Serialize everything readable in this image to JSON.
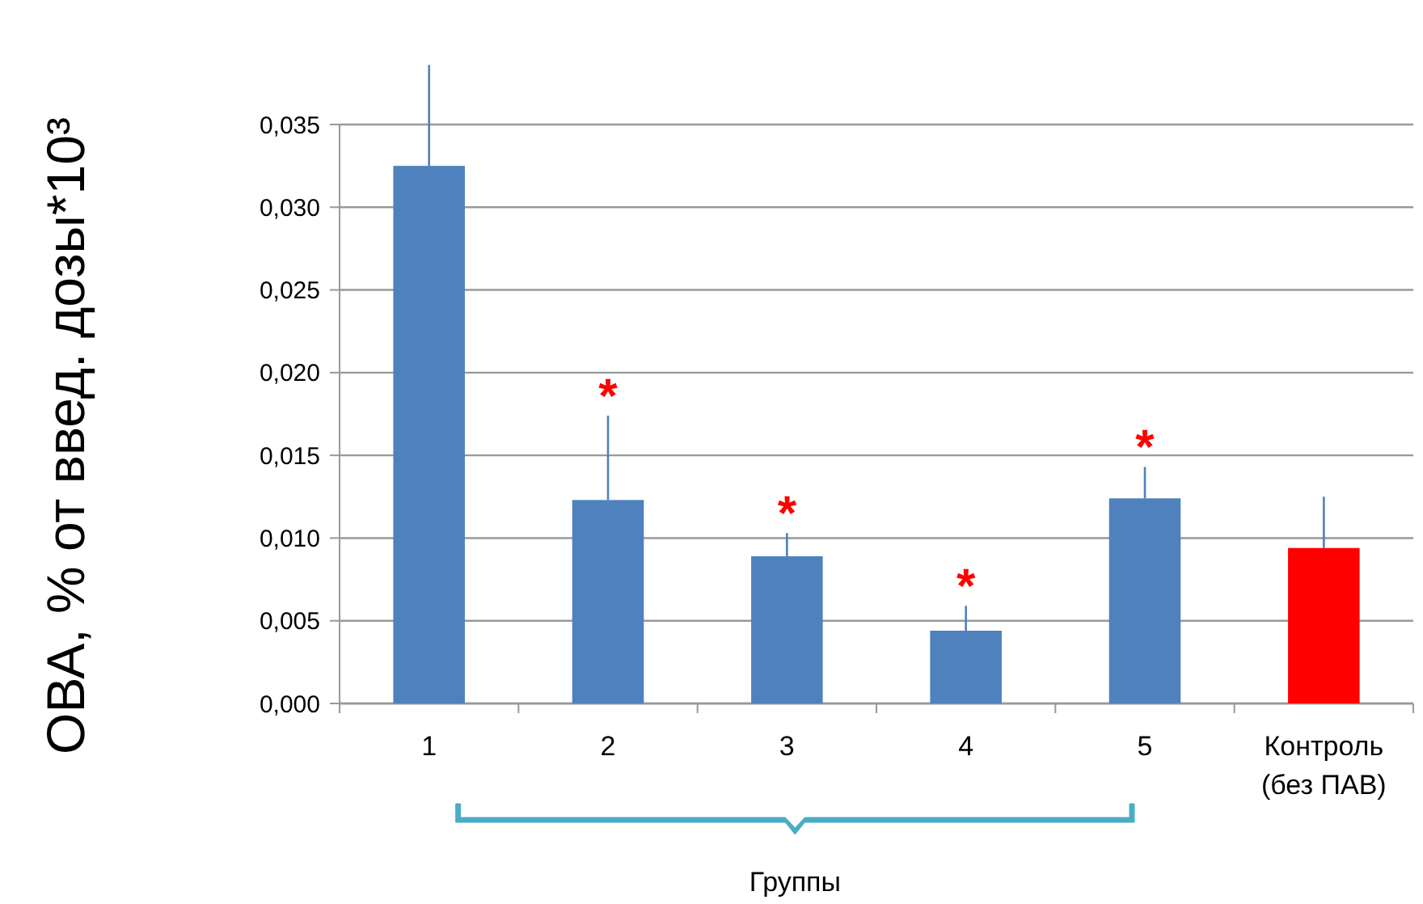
{
  "chart_data": {
    "type": "bar",
    "ylabel": "ОВА, % от введ. дозы*10³",
    "xlabel": "Группы",
    "categories": [
      "1",
      "2",
      "3",
      "4",
      "5",
      "Контроль\n(без ПАВ)"
    ],
    "values": [
      0.0325,
      0.0123,
      0.0089,
      0.0044,
      0.0124,
      0.0094
    ],
    "colors": [
      "#4f81bd",
      "#4f81bd",
      "#4f81bd",
      "#4f81bd",
      "#4f81bd",
      "#ff0000"
    ],
    "errors": [
      [
        0.0325,
        0.0386
      ],
      [
        0.0123,
        0.0174
      ],
      [
        0.0089,
        0.0103
      ],
      [
        0.0044,
        0.0059
      ],
      [
        0.0124,
        0.0143
      ],
      [
        0.0094,
        0.0125
      ]
    ],
    "ylim": [
      0,
      0.035
    ],
    "yticks": [
      {
        "value": 0,
        "label": "0,000"
      },
      {
        "value": 0.005,
        "label": "0,005"
      },
      {
        "value": 0.01,
        "label": "0,010"
      },
      {
        "value": 0.015,
        "label": "0,015"
      },
      {
        "value": 0.02,
        "label": "0,020"
      },
      {
        "value": 0.025,
        "label": "0,025"
      },
      {
        "value": 0.03,
        "label": "0,030"
      },
      {
        "value": 0.035,
        "label": "0,035"
      }
    ],
    "grid": "y",
    "annotations": [
      {
        "text": "*",
        "x": "2",
        "y": 0.0174
      },
      {
        "text": "*",
        "x": "3",
        "y": 0.0103
      },
      {
        "text": "*",
        "x": "4",
        "y": 0.0059
      },
      {
        "text": "*",
        "x": "5",
        "y": 0.0143
      }
    ]
  }
}
